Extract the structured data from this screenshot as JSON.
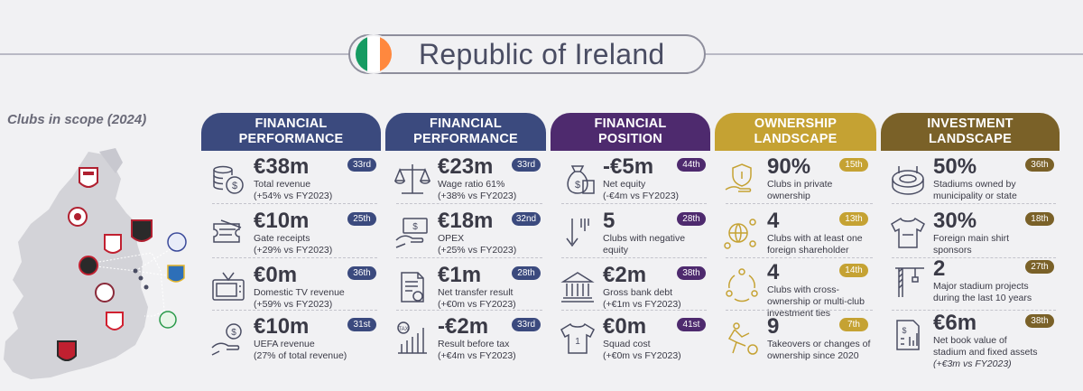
{
  "title": "Republic of Ireland",
  "clubs_label": "Clubs in scope (2024)",
  "colors": {
    "navy": "#3b4a7e",
    "purple": "#4e2a6e",
    "gold": "#c5a233",
    "brown": "#7a6128",
    "flag_green": "#169b62",
    "flag_orange": "#ff883e"
  },
  "columns": [
    {
      "header": [
        "FINANCIAL",
        "PERFORMANCE"
      ],
      "items": [
        {
          "value": "€38m",
          "rank": "33rd",
          "desc": [
            "Total revenue",
            "(+54% vs FY2023)"
          ],
          "icon": "coins-icon"
        },
        {
          "value": "€10m",
          "rank": "25th",
          "desc": [
            "Gate receipts",
            "(+29% vs FY2023)"
          ],
          "icon": "tickets-icon"
        },
        {
          "value": "€0m",
          "rank": "36th",
          "desc": [
            "Domestic TV revenue",
            "(+59% vs FY2023)"
          ],
          "icon": "tv-icon"
        },
        {
          "value": "€10m",
          "rank": "31st",
          "desc": [
            "UEFA revenue",
            "(27% of total revenue)"
          ],
          "icon": "money-hand-icon"
        }
      ]
    },
    {
      "header": [
        "FINANCIAL",
        "PERFORMANCE"
      ],
      "items": [
        {
          "value": "€23m",
          "rank": "33rd",
          "desc": [
            "Wage ratio 61%",
            "(+38% vs FY2023)"
          ],
          "icon": "scales-icon"
        },
        {
          "value": "€18m",
          "rank": "32nd",
          "desc": [
            "OPEX",
            "(+25% vs FY2023)"
          ],
          "icon": "cash-hand-icon"
        },
        {
          "value": "€1m",
          "rank": "28th",
          "desc": [
            "Net transfer result",
            "(+€0m vs FY2023)"
          ],
          "icon": "document-icon"
        },
        {
          "value": "-€2m",
          "rank": "33rd",
          "desc": [
            "Result before tax",
            "(+€4m vs FY2023)"
          ],
          "icon": "tax-chart-icon"
        }
      ]
    },
    {
      "header": [
        "FINANCIAL",
        "POSITION"
      ],
      "items": [
        {
          "value": "-€5m",
          "rank": "44th",
          "desc": [
            "Net equity",
            "(-€4m vs FY2023)"
          ],
          "icon": "money-bag-icon"
        },
        {
          "value": "5",
          "rank": "28th",
          "desc": [
            "Clubs with negative",
            "equity"
          ],
          "icon": "down-arrow-icon"
        },
        {
          "value": "€2m",
          "rank": "38th",
          "desc": [
            "Gross bank debt",
            "(+€1m vs FY2023)"
          ],
          "icon": "bank-icon"
        },
        {
          "value": "€0m",
          "rank": "41st",
          "desc": [
            "Squad cost",
            "(+€0m vs FY2023)"
          ],
          "icon": "jersey-icon"
        }
      ]
    },
    {
      "header": [
        "OWNERSHIP",
        "LANDSCAPE"
      ],
      "items": [
        {
          "value": "90%",
          "rank": "15th",
          "desc": [
            "Clubs in private",
            "ownership"
          ],
          "icon": "shield-hand-icon"
        },
        {
          "value": "4",
          "rank": "13th",
          "desc": [
            "Clubs with at least one",
            "foreign shareholder"
          ],
          "icon": "globe-people-icon"
        },
        {
          "value": "4",
          "rank": "14th",
          "desc": [
            "Clubs with cross-",
            "ownership or multi-club",
            "investment ties"
          ],
          "icon": "people-cycle-icon"
        },
        {
          "value": "9",
          "rank": "7th",
          "desc": [
            "Takeovers or changes of",
            "ownership since 2020"
          ],
          "icon": "running-icon"
        }
      ]
    },
    {
      "header": [
        "INVESTMENT",
        "LANDSCAPE"
      ],
      "items": [
        {
          "value": "50%",
          "rank": "36th",
          "desc": [
            "Stadiums owned by",
            "municipality or state"
          ],
          "icon": "stadium-icon"
        },
        {
          "value": "30%",
          "rank": "18th",
          "desc": [
            "Foreign main shirt",
            "sponsors"
          ],
          "icon": "shirt-icon"
        },
        {
          "value": "2",
          "rank": "27th",
          "desc": [
            "Major stadium projects",
            "during the last 10 years"
          ],
          "icon": "crane-icon"
        },
        {
          "value": "€6m",
          "rank": "38th",
          "desc": [
            "Net book value of",
            "stadium and fixed assets",
            "(+€3m vs FY2023)"
          ],
          "icon": "ledger-icon"
        }
      ]
    }
  ]
}
